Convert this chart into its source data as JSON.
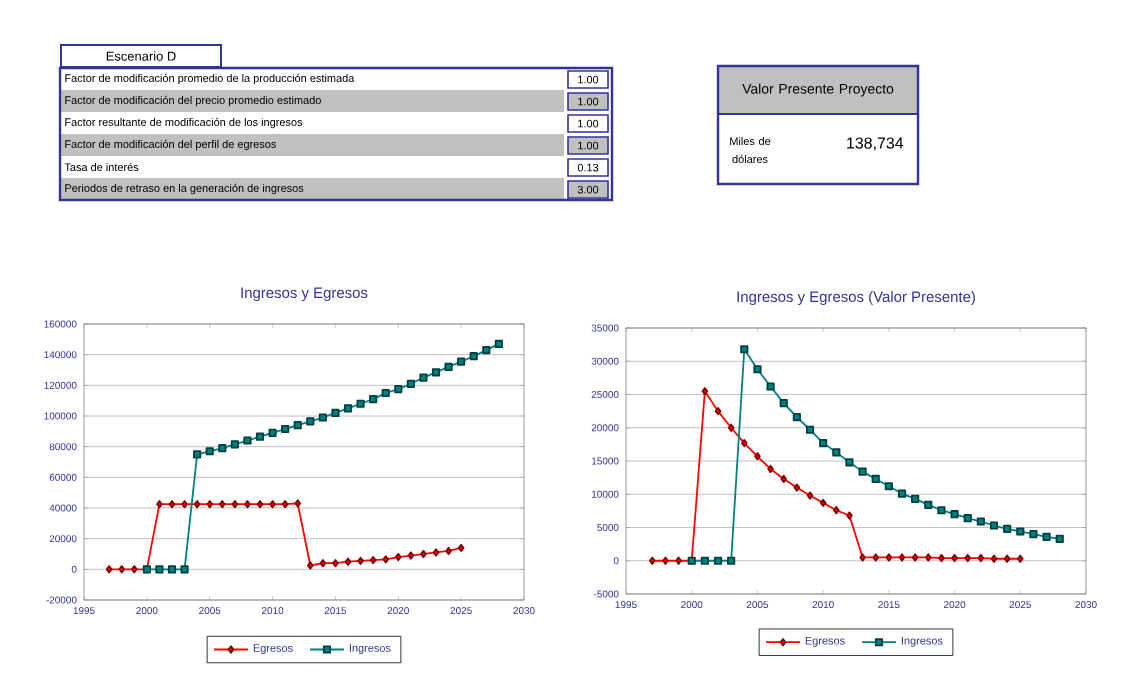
{
  "chart_data": [
    {
      "type": "other",
      "title": "Escenario D",
      "annotations": [
        "Factor de modificación promedio de la producción estimada",
        "1.00",
        "Factor de modificación del precio promedio estimado",
        "1.00",
        "Factor resultante de modificación de los ingresos",
        "1.00",
        "Factor de modificación del perfil de egresos",
        "1.00",
        "Tasa de interés",
        "0.13",
        "Periodos de retraso en la generación de ingresos",
        "3.00"
      ]
    },
    {
      "type": "other",
      "title": "Valor Presente Proyecto",
      "annotations": [
        "Miles de dólares",
        "138,734"
      ]
    },
    {
      "type": "line",
      "title": "Ingresos y Egresos",
      "xlim": [
        1995,
        2030
      ],
      "xticks": [
        1995,
        2000,
        2005,
        2010,
        2015,
        2020,
        2025,
        2030
      ],
      "ylim": [
        -20000,
        160000
      ],
      "yticks": [
        -20000,
        0,
        20000,
        40000,
        60000,
        80000,
        100000,
        120000,
        140000,
        160000
      ],
      "grid": "y",
      "legend": "bottom",
      "series": [
        {
          "name": "Egresos",
          "color": "#ff0000",
          "marker": "diamond",
          "x": [
            1997,
            1998,
            1999,
            2000,
            2001,
            2002,
            2003,
            2004,
            2005,
            2006,
            2007,
            2008,
            2009,
            2010,
            2011,
            2012,
            2013,
            2014,
            2015,
            2016,
            2017,
            2018,
            2019,
            2020,
            2021,
            2022,
            2023,
            2024,
            2025
          ],
          "values": [
            0,
            0,
            0,
            0,
            42500,
            42500,
            42500,
            42500,
            42500,
            42500,
            42500,
            42500,
            42500,
            42500,
            42500,
            43000,
            2500,
            4000,
            4000,
            5000,
            5500,
            6000,
            6500,
            8000,
            9000,
            10000,
            11000,
            12000,
            14000
          ]
        },
        {
          "name": "Ingresos",
          "color": "#008080",
          "marker": "square",
          "x": [
            2000,
            2001,
            2002,
            2003,
            2004,
            2005,
            2006,
            2007,
            2008,
            2009,
            2010,
            2011,
            2012,
            2013,
            2014,
            2015,
            2016,
            2017,
            2018,
            2019,
            2020,
            2021,
            2022,
            2023,
            2024,
            2025,
            2026,
            2027,
            2028
          ],
          "values": [
            0,
            0,
            0,
            0,
            75000,
            77000,
            79000,
            81500,
            84000,
            86500,
            89000,
            91500,
            94000,
            96500,
            99000,
            102000,
            105000,
            108000,
            111000,
            115000,
            117500,
            121000,
            125000,
            128500,
            132000,
            135500,
            139000,
            143000,
            147000
          ]
        }
      ]
    },
    {
      "type": "line",
      "title": "Ingresos y Egresos (Valor Presente)",
      "xlim": [
        1995,
        2030
      ],
      "xticks": [
        1995,
        2000,
        2005,
        2010,
        2015,
        2020,
        2025,
        2030
      ],
      "ylim": [
        -5000,
        35000
      ],
      "yticks": [
        -5000,
        0,
        5000,
        10000,
        15000,
        20000,
        25000,
        30000,
        35000
      ],
      "grid": "y",
      "legend": "bottom",
      "series": [
        {
          "name": "Egresos",
          "color": "#ff0000",
          "marker": "diamond",
          "x": [
            1997,
            1998,
            1999,
            2000,
            2001,
            2002,
            2003,
            2004,
            2005,
            2006,
            2007,
            2008,
            2009,
            2010,
            2011,
            2012,
            2013,
            2014,
            2015,
            2016,
            2017,
            2018,
            2019,
            2020,
            2021,
            2022,
            2023,
            2024,
            2025
          ],
          "values": [
            0,
            0,
            0,
            0,
            25500,
            22500,
            20000,
            17700,
            15700,
            13800,
            12300,
            11000,
            9800,
            8700,
            7600,
            6800,
            500,
            500,
            500,
            500,
            500,
            500,
            400,
            400,
            400,
            400,
            300,
            300,
            300
          ]
        },
        {
          "name": "Ingresos",
          "color": "#008080",
          "marker": "square",
          "x": [
            2000,
            2001,
            2002,
            2003,
            2004,
            2005,
            2006,
            2007,
            2008,
            2009,
            2010,
            2011,
            2012,
            2013,
            2014,
            2015,
            2016,
            2017,
            2018,
            2019,
            2020,
            2021,
            2022,
            2023,
            2024,
            2025,
            2026,
            2027,
            2028
          ],
          "values": [
            0,
            0,
            0,
            0,
            31800,
            28800,
            26200,
            23700,
            21600,
            19700,
            17700,
            16300,
            14800,
            13400,
            12300,
            11200,
            10100,
            9300,
            8400,
            7600,
            7000,
            6400,
            5900,
            5300,
            4800,
            4400,
            4000,
            3600,
            3300
          ]
        }
      ]
    }
  ]
}
